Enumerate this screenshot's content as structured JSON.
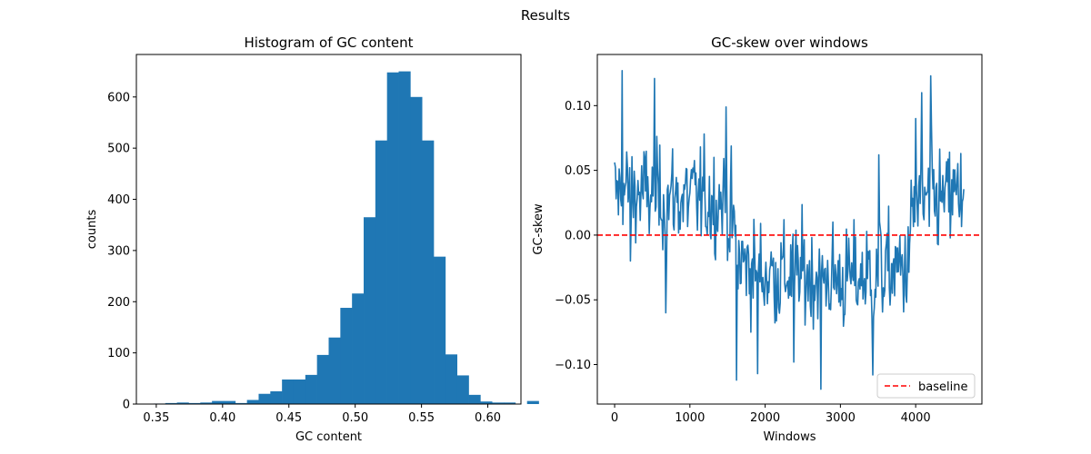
{
  "figure": {
    "title": "Results"
  },
  "colors": {
    "series": "#1f77b4",
    "baseline": "#ff0000",
    "axis": "#000000"
  },
  "chart_data": [
    {
      "type": "bar",
      "title": "Histogram of GC content",
      "xlabel": "GC content",
      "ylabel": "counts",
      "xlim": [
        0.335,
        0.625
      ],
      "ylim": [
        0,
        683
      ],
      "xticks": [
        0.35,
        0.4,
        0.45,
        0.5,
        0.55,
        0.6
      ],
      "xtick_labels": [
        "0.35",
        "0.40",
        "0.45",
        "0.50",
        "0.55",
        "0.60"
      ],
      "yticks": [
        0,
        100,
        200,
        300,
        400,
        500,
        600
      ],
      "ytick_labels": [
        "0",
        "100",
        "200",
        "300",
        "400",
        "500",
        "600"
      ],
      "bins": {
        "start": 0.348,
        "width": 0.0088,
        "counts": [
          1,
          2,
          3,
          2,
          3,
          6,
          6,
          2,
          8,
          20,
          25,
          48,
          48,
          57,
          96,
          130,
          188,
          216,
          365,
          515,
          648,
          650,
          600,
          515,
          288,
          97,
          56,
          18,
          5,
          3,
          3,
          0,
          6
        ]
      }
    },
    {
      "type": "line",
      "title": "GC-skew over windows",
      "xlabel": "Windows",
      "ylabel": "GC-skew",
      "xlim": [
        -230,
        4880
      ],
      "ylim": [
        -0.1305,
        0.1395
      ],
      "xticks": [
        0,
        1000,
        2000,
        3000,
        4000
      ],
      "xtick_labels": [
        "0",
        "1000",
        "2000",
        "3000",
        "4000"
      ],
      "yticks": [
        -0.1,
        -0.05,
        0.0,
        0.05,
        0.1
      ],
      "ytick_labels": [
        "−0.10",
        "−0.05",
        "0.00",
        "0.05",
        "0.10"
      ],
      "baseline": {
        "y": 0.0,
        "label": "baseline",
        "style": "dashed"
      },
      "legend": {
        "position": "lower right",
        "entries": [
          "baseline"
        ]
      },
      "series": [
        {
          "n_points": 4640,
          "step": 10,
          "profile": [
            [
              0,
              0.03
            ],
            [
              100,
              0.035
            ],
            [
              500,
              0.03
            ],
            [
              1000,
              0.028
            ],
            [
              1450,
              0.028
            ],
            [
              1560,
              0.01
            ],
            [
              1650,
              -0.02
            ],
            [
              2000,
              -0.03
            ],
            [
              2500,
              -0.03
            ],
            [
              3000,
              -0.035
            ],
            [
              3500,
              -0.03
            ],
            [
              3900,
              -0.025
            ],
            [
              3960,
              0.02
            ],
            [
              4200,
              0.025
            ],
            [
              4640,
              0.03
            ]
          ],
          "noise_sd": 0.028,
          "highlights": [
            [
              100,
              0.127
            ],
            [
              530,
              0.121
            ],
            [
              210,
              -0.02
            ],
            [
              680,
              -0.06
            ],
            [
              1480,
              0.099
            ],
            [
              1620,
              -0.112
            ],
            [
              1900,
              -0.107
            ],
            [
              2380,
              -0.098
            ],
            [
              2740,
              -0.119
            ],
            [
              3430,
              -0.108
            ],
            [
              3510,
              0.062
            ],
            [
              4000,
              0.09
            ],
            [
              4080,
              0.11
            ],
            [
              4200,
              0.123
            ],
            [
              4600,
              0.063
            ]
          ]
        }
      ]
    }
  ]
}
